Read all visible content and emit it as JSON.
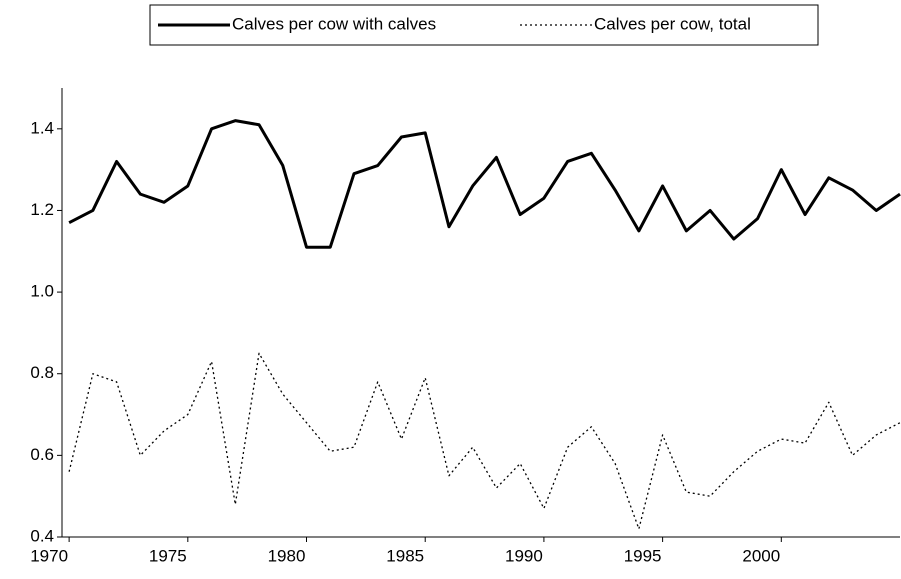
{
  "chart_data": {
    "type": "line",
    "x": [
      1970,
      1971,
      1972,
      1973,
      1974,
      1975,
      1976,
      1977,
      1978,
      1979,
      1980,
      1981,
      1982,
      1983,
      1984,
      1985,
      1986,
      1987,
      1988,
      1989,
      1990,
      1991,
      1992,
      1993,
      1994,
      1995,
      1996,
      1997,
      1998,
      1999,
      2000,
      2001,
      2002,
      2003,
      2004,
      2005
    ],
    "series": [
      {
        "name": "Calves per cow  with calves",
        "color": "#000000",
        "dash": "solid",
        "values": [
          1.17,
          1.2,
          1.32,
          1.24,
          1.22,
          1.26,
          1.4,
          1.42,
          1.41,
          1.31,
          1.11,
          1.11,
          1.29,
          1.31,
          1.38,
          1.39,
          1.16,
          1.26,
          1.33,
          1.19,
          1.23,
          1.32,
          1.34,
          1.25,
          1.15,
          1.26,
          1.15,
          1.2,
          1.13,
          1.18,
          1.3,
          1.19,
          1.28,
          1.25,
          1.2,
          1.24
        ]
      },
      {
        "name": "Calves per cow, total",
        "color": "#000000",
        "dash": "dotted",
        "values": [
          0.56,
          0.8,
          0.78,
          0.6,
          0.66,
          0.7,
          0.83,
          0.48,
          0.85,
          0.75,
          0.68,
          0.61,
          0.62,
          0.78,
          0.64,
          0.79,
          0.55,
          0.62,
          0.52,
          0.58,
          0.47,
          0.62,
          0.67,
          0.58,
          0.42,
          0.65,
          0.51,
          0.5,
          0.56,
          0.61,
          0.64,
          0.63,
          0.73,
          0.6,
          0.65,
          0.68
        ]
      }
    ],
    "xlim": [
      1969.7,
      2005
    ],
    "xticks": [
      1970,
      1975,
      1980,
      1985,
      1990,
      1995,
      2000
    ],
    "ylim": [
      0.4,
      1.5
    ],
    "yticks": [
      0.4,
      0.6,
      0.8,
      {
        "value": 1.0,
        "label": "1.0"
      },
      1.2,
      1.4
    ],
    "legend": "top"
  }
}
